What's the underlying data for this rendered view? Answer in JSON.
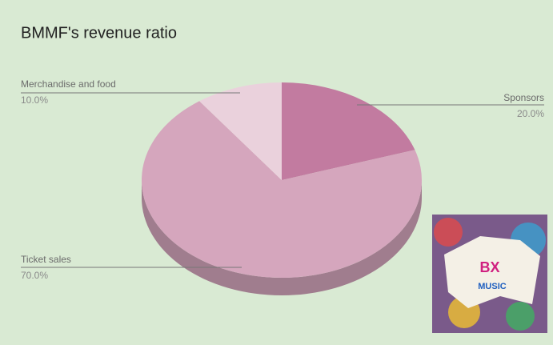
{
  "chart_data": {
    "type": "pie3d",
    "title": "BMMF's revenue ratio",
    "categories": [
      "Sponsors",
      "Ticket sales",
      "Merchandise and food"
    ],
    "values": [
      20,
      70,
      10
    ],
    "value_labels": [
      "20.0%",
      "70.0%",
      "10.0%"
    ],
    "colors": [
      "#c27ba0",
      "#d5a6bd",
      "#ead1dc"
    ]
  }
}
